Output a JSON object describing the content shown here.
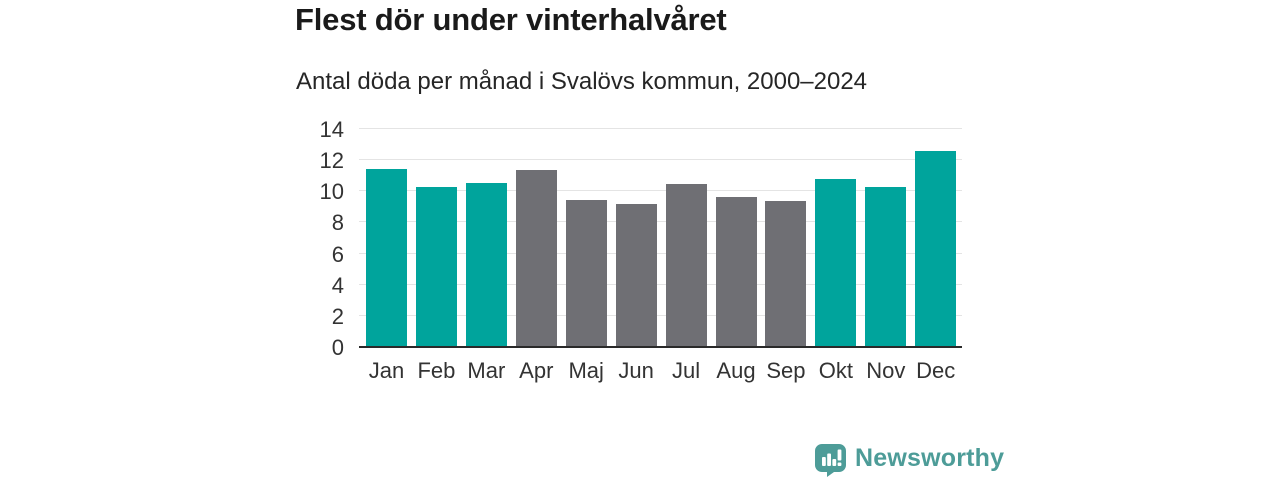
{
  "header": {
    "title": "Flest dör under vinterhalvåret",
    "subtitle": "Antal döda per månad i Svalövs kommun, 2000–2024"
  },
  "chart_data": {
    "type": "bar",
    "title": "Flest dör under vinterhalvåret",
    "subtitle": "Antal döda per månad i Svalövs kommun, 2000–2024",
    "categories": [
      "Jan",
      "Feb",
      "Mar",
      "Apr",
      "Maj",
      "Jun",
      "Jul",
      "Aug",
      "Sep",
      "Okt",
      "Nov",
      "Dec"
    ],
    "values": [
      11.4,
      10.2,
      10.5,
      11.3,
      9.4,
      9.1,
      10.4,
      9.6,
      9.3,
      10.7,
      10.2,
      12.5
    ],
    "highlighted": [
      true,
      true,
      true,
      false,
      false,
      false,
      false,
      false,
      false,
      true,
      true,
      true
    ],
    "highlight_color": "#00a49c",
    "muted_color": "#6f6f74",
    "xlabel": "",
    "ylabel": "",
    "ylim": [
      0,
      14
    ],
    "yticks": [
      0,
      2,
      4,
      6,
      8,
      10,
      12,
      14
    ],
    "grid": true,
    "legend": false
  },
  "footer": {
    "brand_label": "Newsworthy",
    "brand_color": "#4d9c98",
    "logo_icon": "bar-chart-speech-bubble-icon"
  }
}
